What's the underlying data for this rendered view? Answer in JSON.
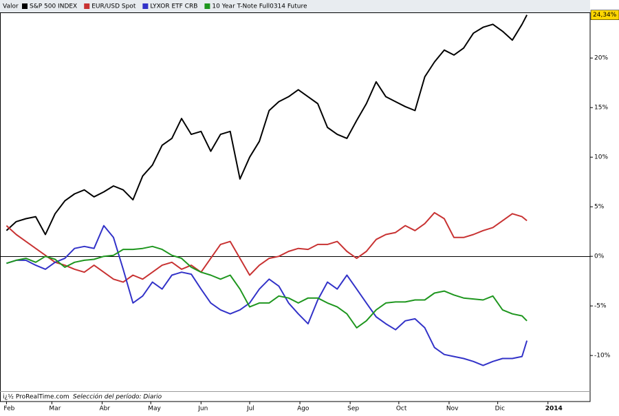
{
  "chart_data": {
    "type": "line",
    "legend_title": "Valor",
    "footer_source": "i¿½ ProRealTime.com",
    "footer_period": "Selección del período: Diario",
    "x": [
      32,
      38,
      44,
      50,
      56,
      62,
      68,
      74,
      80,
      86,
      92,
      98,
      104,
      110,
      116,
      122,
      128,
      134,
      140,
      146,
      152,
      158,
      164,
      170,
      176,
      182,
      188,
      194,
      200,
      206,
      212,
      218,
      224,
      230,
      236,
      242,
      248,
      254,
      260,
      266,
      272,
      278,
      284,
      290,
      296,
      302,
      308,
      314,
      320,
      326,
      332,
      338,
      344,
      350,
      353
    ],
    "xlim": [
      28,
      392
    ],
    "xticks": [
      {
        "value": 32,
        "label": "Feb"
      },
      {
        "value": 60,
        "label": "Mar"
      },
      {
        "value": 91,
        "label": "Abr"
      },
      {
        "value": 121,
        "label": "May"
      },
      {
        "value": 152,
        "label": "Jun"
      },
      {
        "value": 182,
        "label": "Jul"
      },
      {
        "value": 213,
        "label": "Ago"
      },
      {
        "value": 244,
        "label": "Sep"
      },
      {
        "value": 274,
        "label": "Oct"
      },
      {
        "value": 305,
        "label": "Nov"
      },
      {
        "value": 335,
        "label": "Dic"
      },
      {
        "value": 366,
        "label": "2014"
      }
    ],
    "ylim": [
      -13.6,
      24.6
    ],
    "yticks": [
      {
        "value": -10,
        "label": "-10%"
      },
      {
        "value": -5,
        "label": "-5%"
      },
      {
        "value": 0,
        "label": "0%"
      },
      {
        "value": 5,
        "label": "5%"
      },
      {
        "value": 10,
        "label": "10%"
      },
      {
        "value": 15,
        "label": "15%"
      },
      {
        "value": 20,
        "label": "20%"
      }
    ],
    "series": [
      {
        "name": "S&P 500 INDEX",
        "color": "#000000",
        "values": [
          2.6,
          3.5,
          3.8,
          4.0,
          2.2,
          4.3,
          5.6,
          6.3,
          6.7,
          6.0,
          6.5,
          7.1,
          6.7,
          5.7,
          8.1,
          9.2,
          11.2,
          11.9,
          13.9,
          12.3,
          12.6,
          10.6,
          12.3,
          12.6,
          7.8,
          10.0,
          11.6,
          14.7,
          15.6,
          16.1,
          16.8,
          16.1,
          15.4,
          13.0,
          12.3,
          11.9,
          13.7,
          15.4,
          17.6,
          16.1,
          15.6,
          15.1,
          14.7,
          18.1,
          19.6,
          20.8,
          20.3,
          21.0,
          22.5,
          23.1,
          23.4,
          22.7,
          21.8,
          23.4,
          24.34
        ],
        "value_labels": [
          null,
          null,
          null,
          null,
          null,
          null,
          null,
          null,
          null,
          null,
          null,
          null,
          null,
          null,
          null,
          null,
          null,
          null,
          null,
          null,
          null,
          null,
          null,
          null,
          null,
          null,
          null,
          null,
          null,
          null,
          null,
          null,
          null,
          null,
          null,
          null,
          null,
          null,
          null,
          null,
          null,
          null,
          null,
          null,
          null,
          null,
          null,
          null,
          null,
          null,
          null,
          null,
          null,
          null,
          "24,34%"
        ]
      },
      {
        "name": "EUR/USD Spot",
        "color": "#c83232",
        "values": [
          3.1,
          2.2,
          1.5,
          0.8,
          0.1,
          -0.6,
          -0.9,
          -1.3,
          -1.6,
          -0.9,
          -1.6,
          -2.3,
          -2.6,
          -1.9,
          -2.3,
          -1.6,
          -0.9,
          -0.6,
          -1.3,
          -0.9,
          -1.6,
          -0.2,
          1.2,
          1.5,
          -0.2,
          -1.9,
          -0.9,
          -0.2,
          0.0,
          0.5,
          0.8,
          0.7,
          1.2,
          1.2,
          1.5,
          0.5,
          -0.2,
          0.5,
          1.7,
          2.2,
          2.4,
          3.1,
          2.6,
          3.3,
          4.4,
          3.8,
          1.9,
          1.9,
          2.2,
          2.6,
          2.9,
          3.6,
          4.3,
          4.0,
          3.6
        ]
      },
      {
        "name": "LYXOR ETF CRB",
        "color": "#3232c8",
        "values": [
          -0.7,
          -0.4,
          -0.4,
          -0.9,
          -1.3,
          -0.6,
          -0.2,
          0.8,
          1.0,
          0.8,
          3.1,
          1.9,
          -1.3,
          -4.7,
          -4.0,
          -2.6,
          -3.3,
          -1.9,
          -1.6,
          -1.8,
          -3.3,
          -4.7,
          -5.4,
          -5.8,
          -5.4,
          -4.7,
          -3.3,
          -2.3,
          -3.0,
          -4.7,
          -5.8,
          -6.8,
          -4.4,
          -2.6,
          -3.3,
          -1.9,
          -3.3,
          -4.7,
          -6.1,
          -6.8,
          -7.4,
          -6.5,
          -6.3,
          -7.2,
          -9.2,
          -9.9,
          -10.1,
          -10.3,
          -10.6,
          -11.0,
          -10.6,
          -10.3,
          -10.3,
          -10.1,
          -8.5
        ]
      },
      {
        "name": "10 Year T-Note Full0314 Future",
        "color": "#1e961e",
        "values": [
          -0.7,
          -0.4,
          -0.2,
          -0.6,
          0.0,
          -0.3,
          -1.1,
          -0.6,
          -0.4,
          -0.3,
          0.0,
          0.1,
          0.7,
          0.7,
          0.8,
          1.0,
          0.7,
          0.1,
          -0.2,
          -1.1,
          -1.6,
          -1.9,
          -2.3,
          -1.9,
          -3.3,
          -5.1,
          -4.7,
          -4.7,
          -4.0,
          -4.2,
          -4.7,
          -4.2,
          -4.2,
          -4.7,
          -5.1,
          -5.8,
          -7.2,
          -6.5,
          -5.4,
          -4.7,
          -4.6,
          -4.6,
          -4.4,
          -4.4,
          -3.7,
          -3.5,
          -3.9,
          -4.2,
          -4.3,
          -4.4,
          -4.0,
          -5.4,
          -5.8,
          -6.0,
          -6.5
        ]
      }
    ]
  }
}
